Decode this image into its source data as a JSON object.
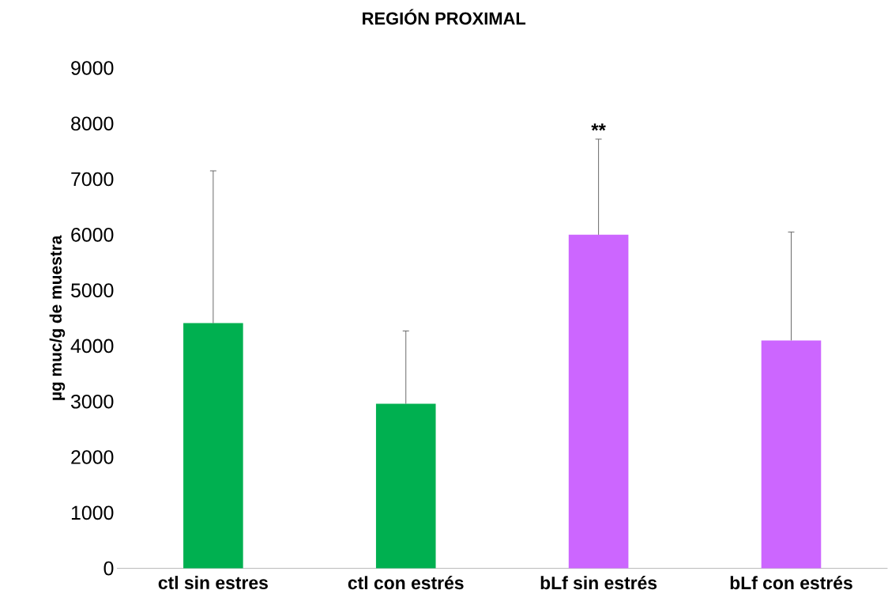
{
  "chart_data": {
    "type": "bar",
    "title": "REGIÓN PROXIMAL",
    "ylabel": "µg muc/g de muestra",
    "categories": [
      "ctl sin estres",
      "ctl con estrés",
      "bLf sin estrés",
      "bLf con estrés"
    ],
    "values": [
      4410,
      2960,
      6000,
      4100
    ],
    "errors": [
      [
        4410,
        7150
      ],
      [
        2960,
        4270
      ],
      [
        6000,
        7720
      ],
      [
        4100,
        6050
      ]
    ],
    "colors": [
      "#00b050",
      "#00b050",
      "#cc66ff",
      "#cc66ff"
    ],
    "ylim": [
      0,
      9000
    ],
    "yticks": [
      0,
      1000,
      2000,
      3000,
      4000,
      5000,
      6000,
      7000,
      8000,
      9000
    ],
    "annotations": [
      "**"
    ],
    "grid": false
  }
}
